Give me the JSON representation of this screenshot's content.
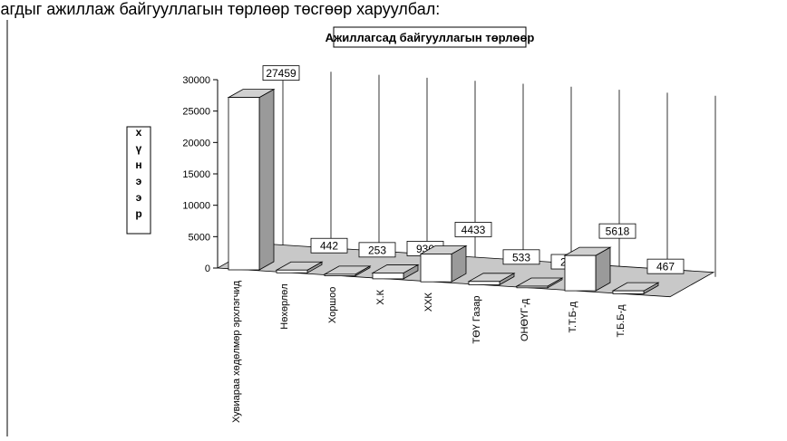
{
  "caption": "лагдыг ажиллаж байгууллагын төрлөөр төсгөөр харуулбал:",
  "chart_data": {
    "type": "bar3d",
    "title": "Ажиллагсад байгууллагын төрлөөр",
    "y_label": "хүнээр",
    "categories": [
      "Хувиараа хөдөлмөр эрхлэгчид",
      "Нөхөрлөл",
      "Хоршоо",
      "Х.К",
      "ХХК",
      "ТӨҮ Газар",
      "ОНӨҮГ-д",
      "Т.Т.Б-д",
      "Т.Б.Б-д"
    ],
    "values": [
      27459,
      442,
      253,
      930,
      4433,
      533,
      255,
      5618,
      467
    ],
    "ylim": [
      0,
      30000
    ],
    "yticks": [
      0,
      5000,
      10000,
      15000,
      20000,
      25000,
      30000
    ],
    "colors": {
      "front": "#ffffff",
      "side": "#9a9a9a",
      "top": "#d0d0d0"
    }
  }
}
